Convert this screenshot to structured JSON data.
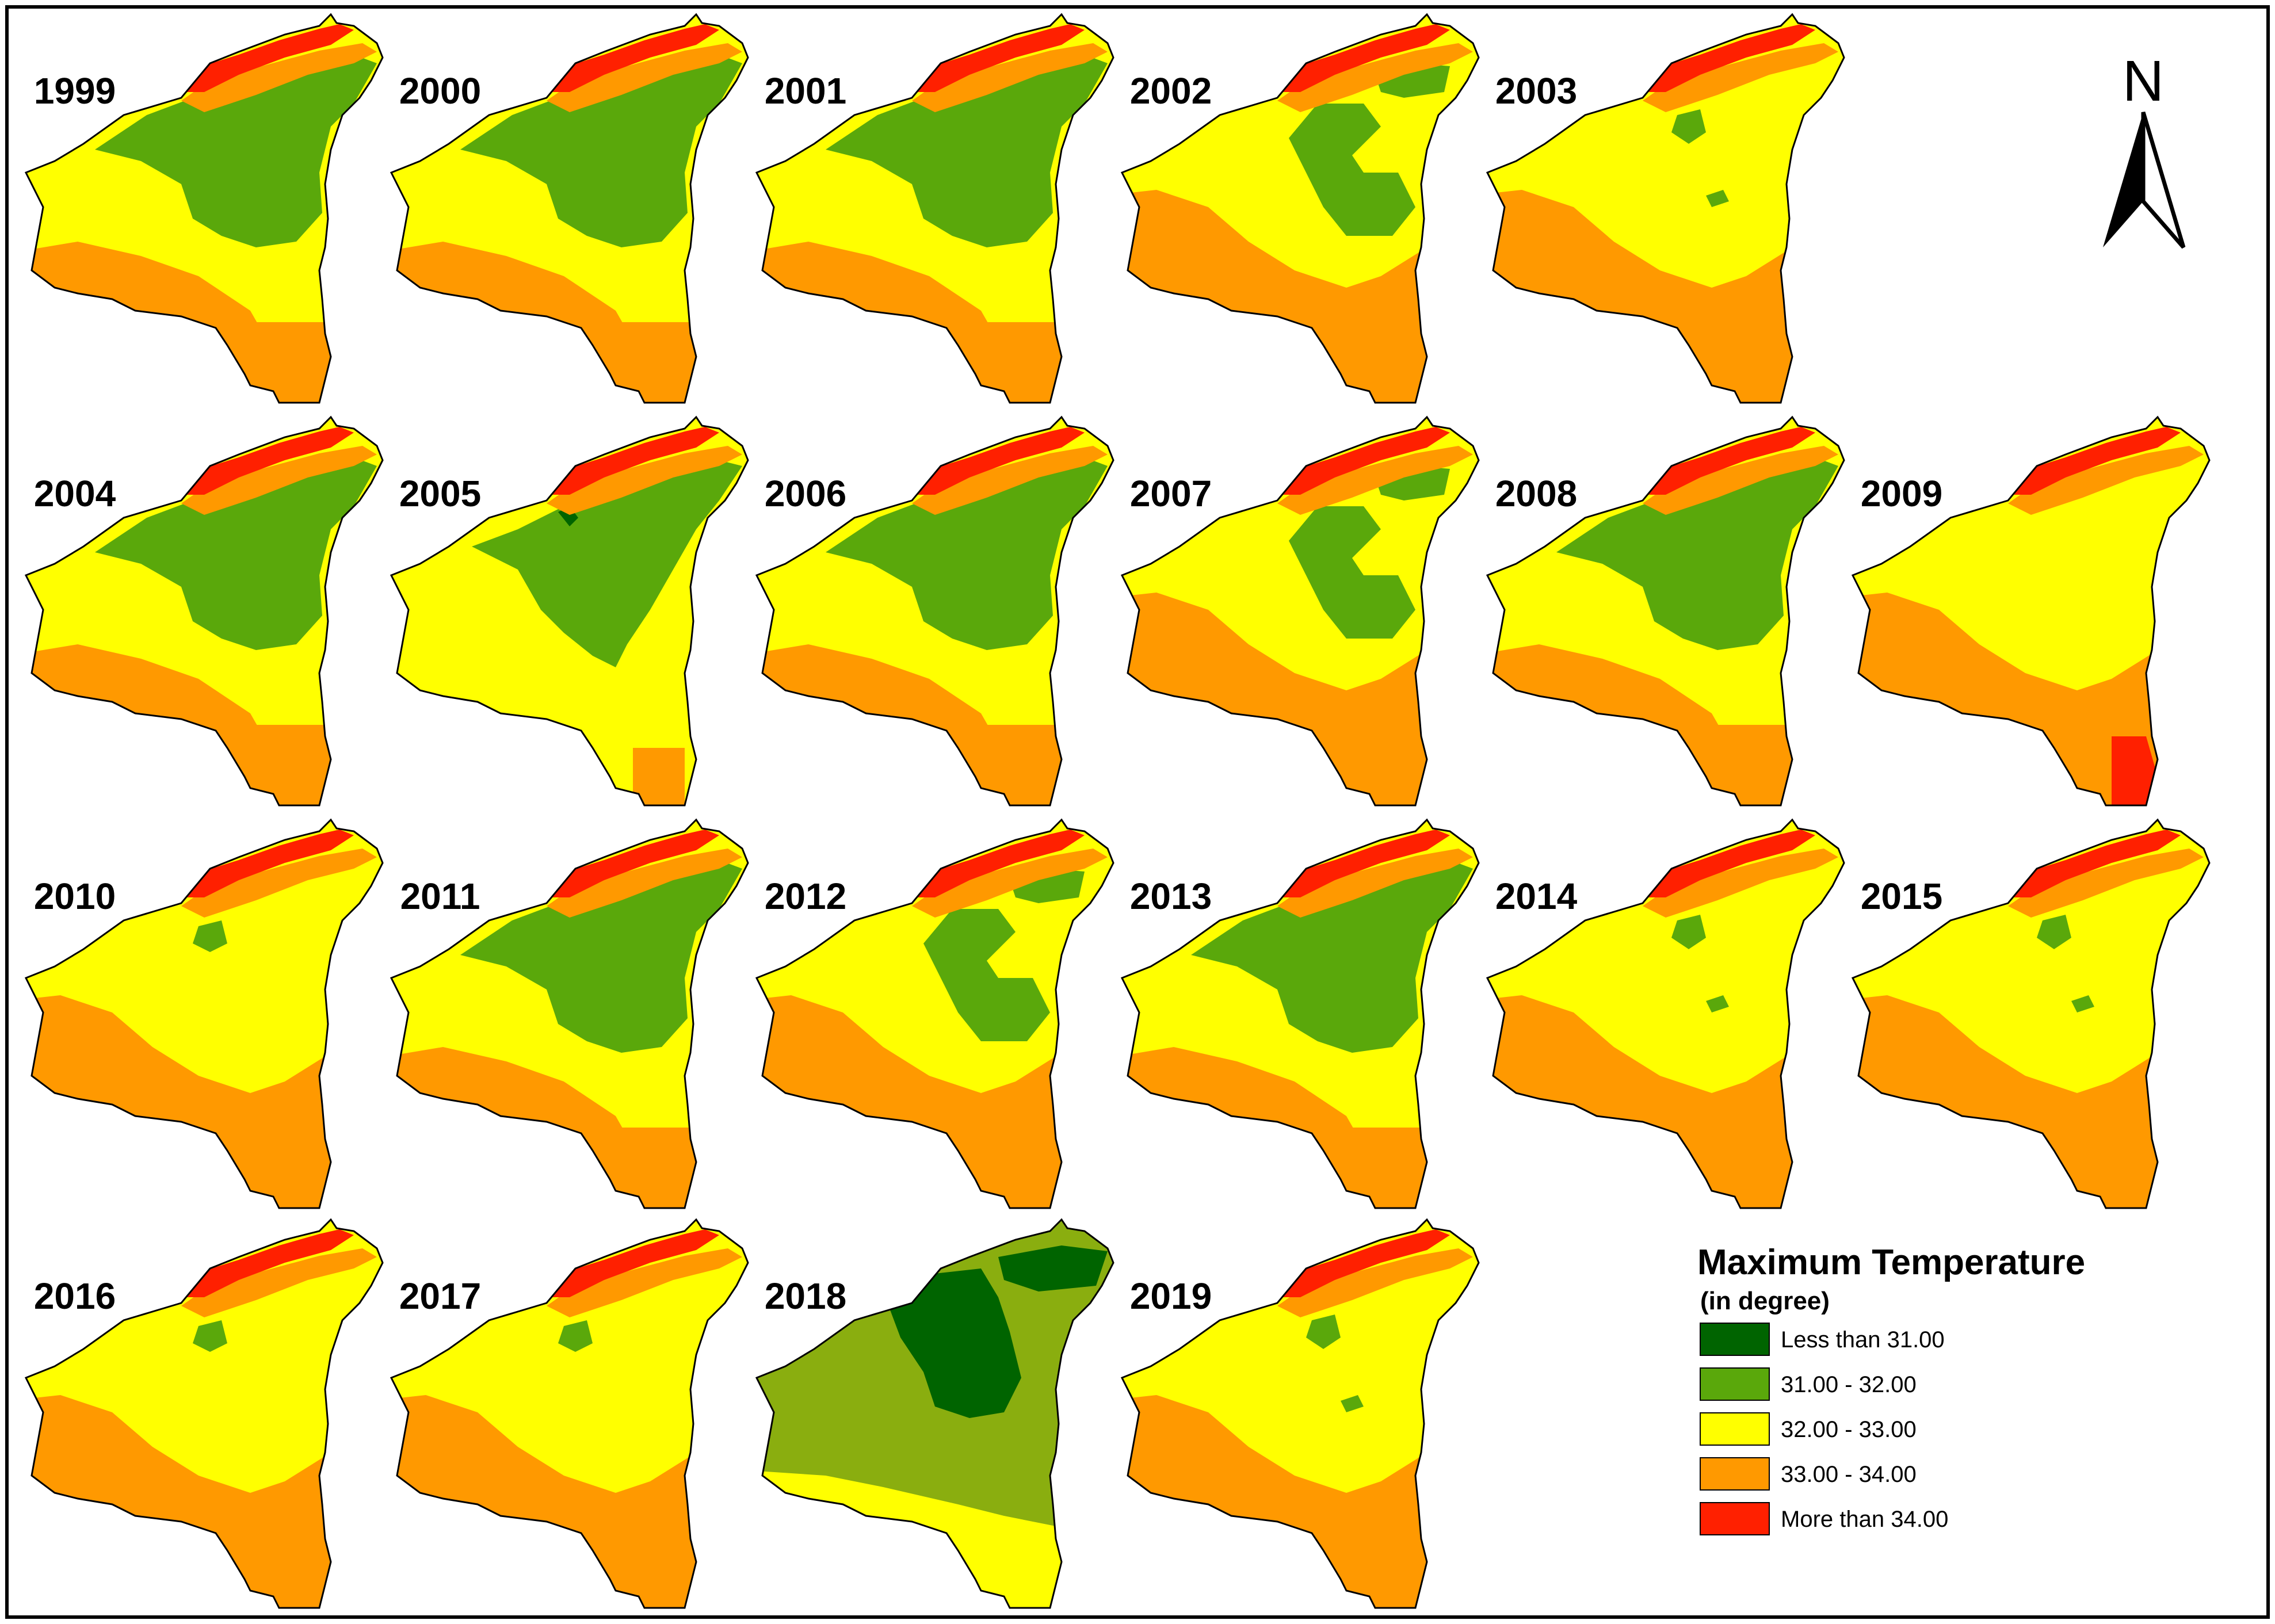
{
  "maps": [
    {
      "year": "1999",
      "zones": "g1"
    },
    {
      "year": "2000",
      "zones": "g1"
    },
    {
      "year": "2001",
      "zones": "g1"
    },
    {
      "year": "2002",
      "zones": "g2"
    },
    {
      "year": "2003",
      "zones": "y3"
    },
    {
      "year": "2004",
      "zones": "g1"
    },
    {
      "year": "2005",
      "zones": "g5"
    },
    {
      "year": "2006",
      "zones": "g1"
    },
    {
      "year": "2007",
      "zones": "g2"
    },
    {
      "year": "2008",
      "zones": "g1"
    },
    {
      "year": "2009",
      "zones": "y9"
    },
    {
      "year": "2010",
      "zones": "y1"
    },
    {
      "year": "2011",
      "zones": "g1"
    },
    {
      "year": "2012",
      "zones": "g2"
    },
    {
      "year": "2013",
      "zones": "g1"
    },
    {
      "year": "2014",
      "zones": "y3"
    },
    {
      "year": "2015",
      "zones": "y3"
    },
    {
      "year": "2016",
      "zones": "y1"
    },
    {
      "year": "2017",
      "zones": "y1"
    },
    {
      "year": "2018",
      "zones": "d18"
    },
    {
      "year": "2019",
      "zones": "y3"
    }
  ],
  "north_arrow": {
    "label": "N"
  },
  "legend": {
    "title": "Maximum Temperature",
    "subtitle": "(in degree)",
    "classes": [
      {
        "label": "Less than 31.00",
        "color": "#006400"
      },
      {
        "label": "31.00 - 32.00",
        "color": "#5aa80b"
      },
      {
        "label": "32.00 - 33.00",
        "color": "#ffff00"
      },
      {
        "label": "33.00 - 34.00",
        "color": "#ff9900"
      },
      {
        "label": "More than 34.00",
        "color": "#ff2000"
      }
    ]
  },
  "colors": {
    "frame": "#000000",
    "background": "#ffffff",
    "olive_green": "#8aae0f"
  }
}
